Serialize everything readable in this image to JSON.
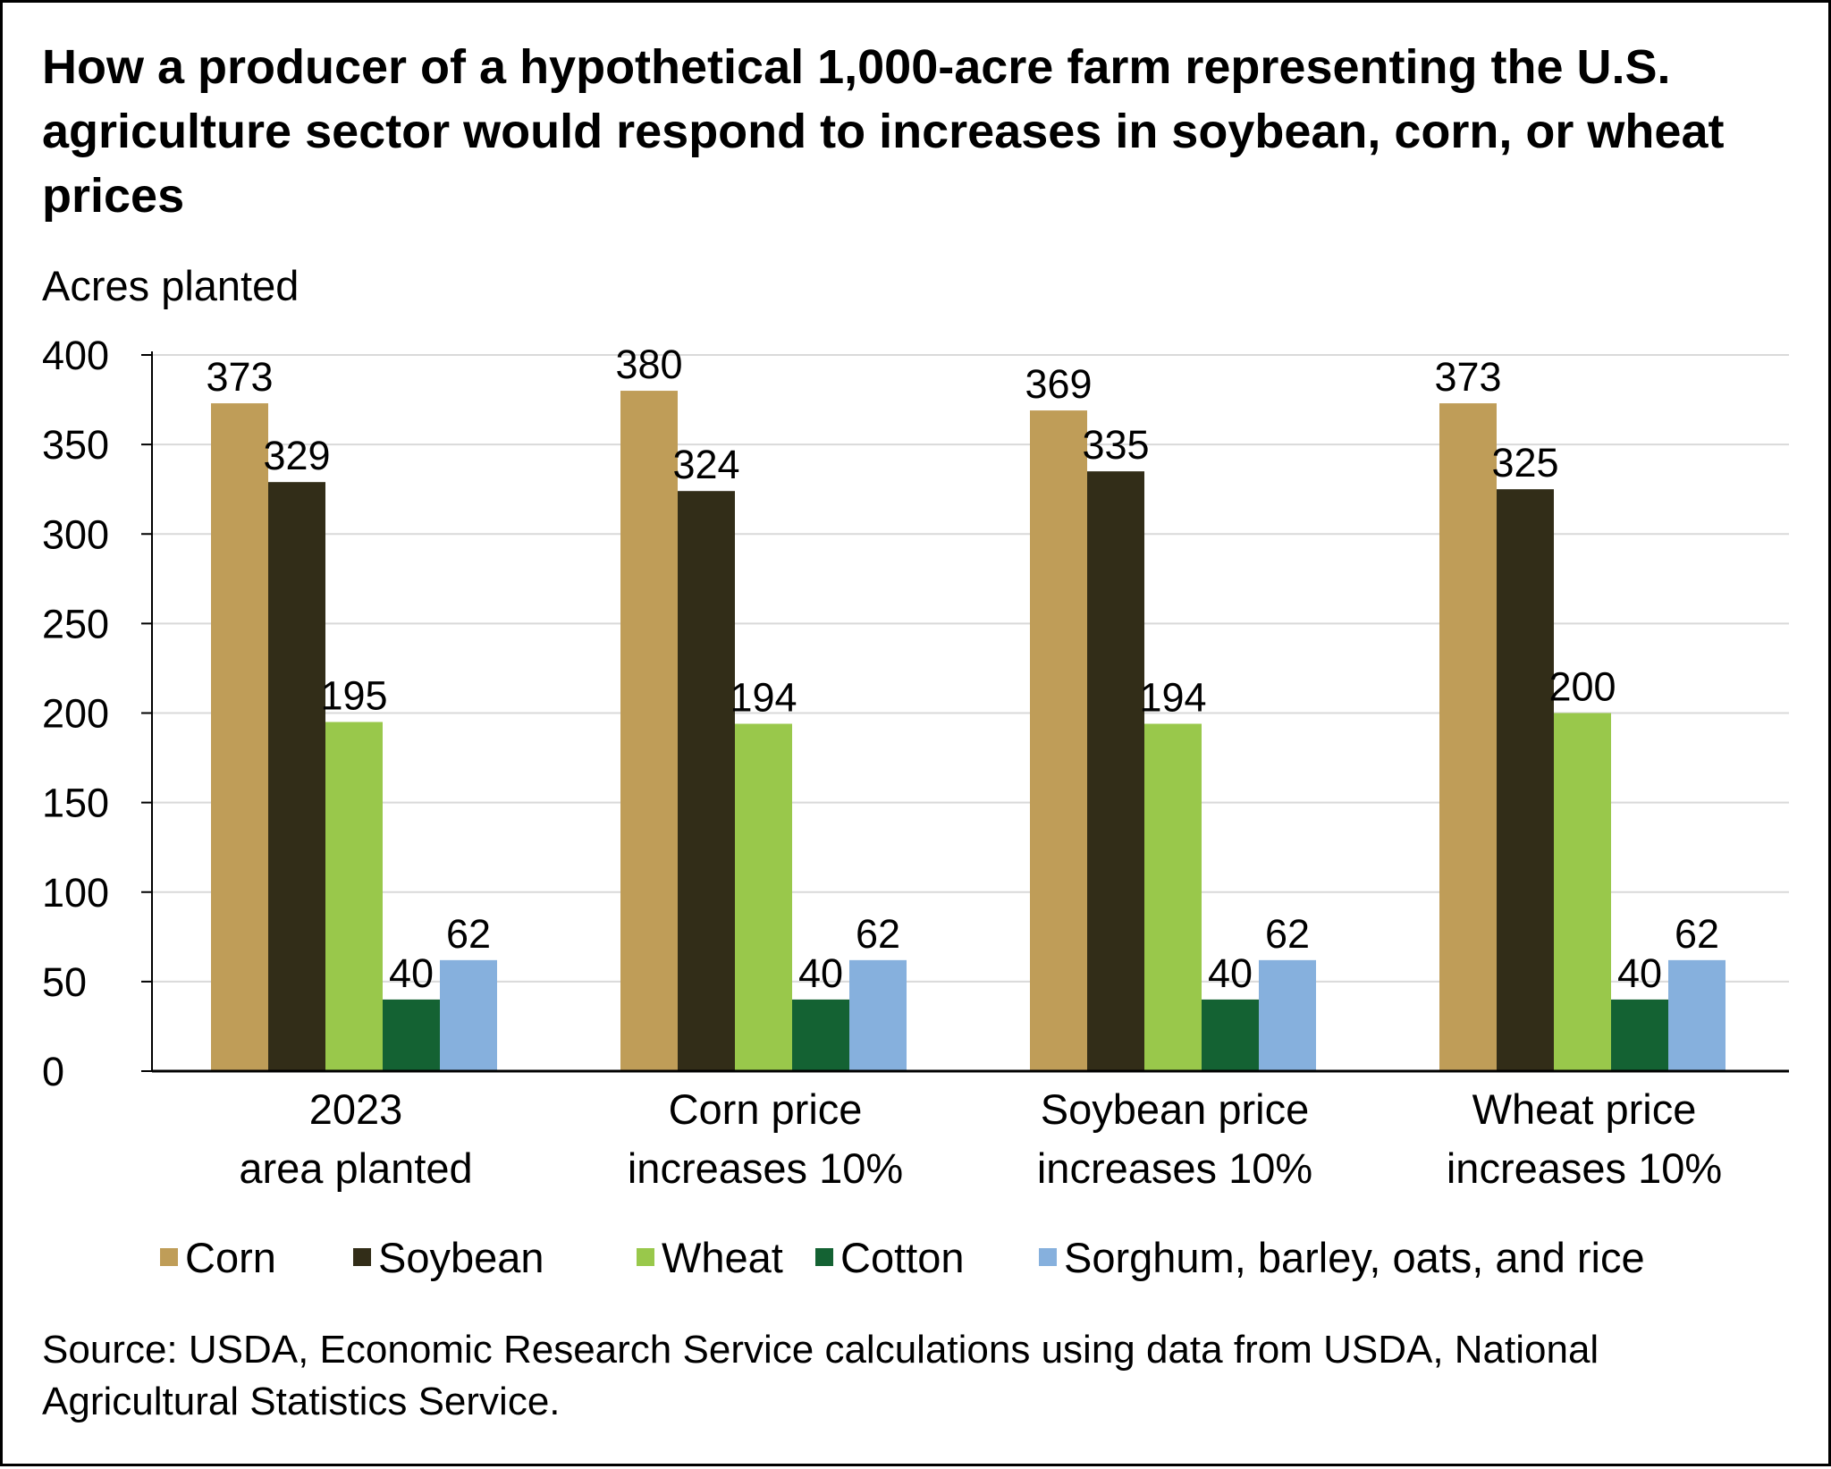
{
  "title": "How a producer of a hypothetical 1,000-acre farm representing the U.S. agriculture sector would respond to increases in soybean, corn, or wheat prices",
  "source": "Source: USDA, Economic Research Service calculations using data from USDA, National Agricultural Statistics Service.",
  "chart_data": {
    "type": "bar",
    "title": "How a producer of a hypothetical 1,000-acre farm representing the U.S. agriculture sector would respond to increases in soybean, corn, or wheat prices",
    "ylabel": "Acres planted",
    "xlabel": "",
    "ylim": [
      0,
      400
    ],
    "yticks": [
      0,
      50,
      100,
      150,
      200,
      250,
      300,
      350,
      400
    ],
    "grid": true,
    "legend_position": "bottom",
    "categories": [
      [
        "2023",
        "area planted"
      ],
      [
        "Corn price",
        "increases 10%"
      ],
      [
        "Soybean price",
        "increases 10%"
      ],
      [
        "Wheat price",
        "increases 10%"
      ]
    ],
    "series": [
      {
        "name": "Corn",
        "color": "#BF9D58",
        "values": [
          373,
          380,
          369,
          373
        ]
      },
      {
        "name": "Soybean",
        "color": "#322D18",
        "values": [
          329,
          324,
          335,
          325
        ]
      },
      {
        "name": "Wheat",
        "color": "#99C84B",
        "values": [
          195,
          194,
          194,
          200
        ]
      },
      {
        "name": "Cotton",
        "color": "#146233",
        "values": [
          40,
          40,
          40,
          40
        ]
      },
      {
        "name": "Sorghum, barley, oats, and rice",
        "color": "#86B0DD",
        "values": [
          62,
          62,
          62,
          62
        ]
      }
    ]
  }
}
